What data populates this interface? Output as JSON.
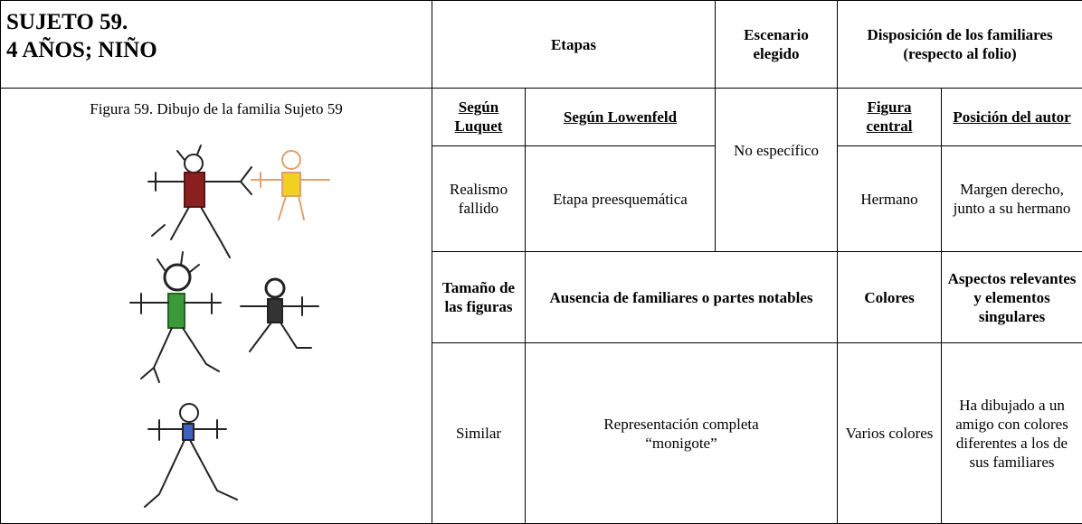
{
  "header": {
    "title_line1": "SUJETO 59.",
    "title_line2": "4 AÑOS; NIÑO",
    "etapas": "Etapas",
    "escenario": "Escenario elegido",
    "disposicion": "Disposición de los familiares (respecto al folio)"
  },
  "figure": {
    "caption": "Figura 59. Dibujo de la familia Sujeto 59"
  },
  "table": {
    "subheaders": [
      "Según Luquet",
      "Según Lowenfeld",
      "Figura central",
      "Posición del autor"
    ],
    "row1": {
      "luquet": "Realismo fallido",
      "lowenfeld": "Etapa preesquemática",
      "escenario": "No específico",
      "figura_central": "Hermano",
      "posicion": "Margen derecho, junto a su hermano"
    },
    "headers2": [
      "Tamaño de las figuras",
      "Ausencia de familiares o partes notables",
      "Colores",
      "Aspectos relevantes y elementos singulares"
    ],
    "row2": [
      "Similar",
      "Representación completa “monigote”",
      "Varios colores",
      "Ha dibujado a un amigo con colores diferentes a los de sus familiares"
    ]
  }
}
